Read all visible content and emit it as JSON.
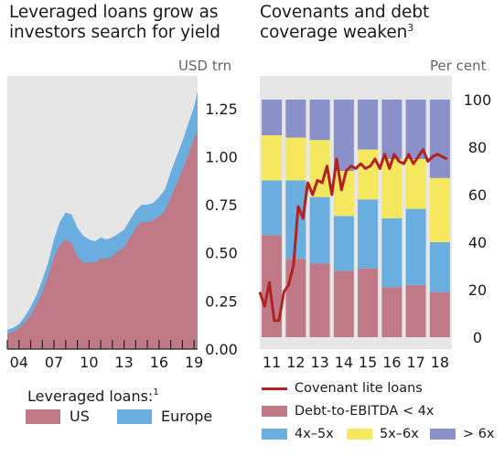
{
  "left_title": [
    "Leveraged loans grow as",
    "investors search for yield"
  ],
  "left_unit": "USD trn",
  "right_title": [
    "Covenants and debt",
    "coverage weaken"
  ],
  "right_title_sup": "3",
  "right_unit": "Per cent",
  "left_legend": {
    "title": "Leveraged loans:",
    "title_sup": "1",
    "items": [
      {
        "label": "US",
        "color": "#c07a87"
      },
      {
        "label": "Europe",
        "color": "#6aaee0"
      }
    ]
  },
  "right_legend": {
    "line": {
      "label": "Covenant lite loans",
      "color": "#b22222"
    },
    "items": [
      {
        "label": "Debt-to-EBITDA < 4x",
        "color": "#c07a87"
      },
      {
        "label": "4x–5x",
        "color": "#6aaee0"
      },
      {
        "label": "5x–6x",
        "color": "#f6e85e"
      },
      {
        "label": "> 6x",
        "color": "#8a90c8"
      }
    ]
  },
  "chart_data": [
    {
      "type": "area",
      "stacked": true,
      "title": "Leveraged loans grow as investors search for yield",
      "unit": "USD trn",
      "x_start": 2003.0,
      "x_end": 2019.3,
      "x_ticks": [
        "04",
        "07",
        "10",
        "13",
        "16",
        "19"
      ],
      "x_tick_values": [
        2004,
        2007,
        2010,
        2013,
        2016,
        2019
      ],
      "y_ticks": [
        "0.00",
        "0.25",
        "0.50",
        "0.75",
        "1.00",
        "1.25"
      ],
      "ylim": [
        0,
        1.42
      ],
      "axis_side": "right",
      "background": "#e6e6e6",
      "x": [
        2003.0,
        2003.5,
        2004.0,
        2004.5,
        2005.0,
        2005.5,
        2006.0,
        2006.5,
        2007.0,
        2007.5,
        2008.0,
        2008.5,
        2009.0,
        2009.5,
        2010.0,
        2010.5,
        2011.0,
        2011.5,
        2012.0,
        2012.5,
        2013.0,
        2013.5,
        2014.0,
        2014.5,
        2015.0,
        2015.5,
        2016.0,
        2016.5,
        2017.0,
        2017.5,
        2018.0,
        2018.5,
        2019.0,
        2019.3
      ],
      "series": [
        {
          "name": "US",
          "color": "#c07a87",
          "values": [
            0.08,
            0.09,
            0.11,
            0.14,
            0.18,
            0.23,
            0.3,
            0.38,
            0.48,
            0.54,
            0.57,
            0.55,
            0.48,
            0.45,
            0.45,
            0.45,
            0.47,
            0.47,
            0.48,
            0.51,
            0.53,
            0.58,
            0.63,
            0.66,
            0.66,
            0.67,
            0.69,
            0.72,
            0.79,
            0.86,
            0.93,
            1.01,
            1.1,
            1.13
          ]
        },
        {
          "name": "Europe",
          "color": "#6aaee0",
          "values": [
            0.02,
            0.02,
            0.02,
            0.03,
            0.04,
            0.05,
            0.06,
            0.07,
            0.09,
            0.12,
            0.14,
            0.15,
            0.15,
            0.14,
            0.12,
            0.11,
            0.11,
            0.1,
            0.1,
            0.09,
            0.09,
            0.09,
            0.09,
            0.09,
            0.09,
            0.09,
            0.1,
            0.11,
            0.13,
            0.14,
            0.15,
            0.16,
            0.16,
            0.21
          ]
        }
      ]
    },
    {
      "type": "bar",
      "stacked": true,
      "title": "Covenants and debt coverage weaken",
      "unit": "Per cent",
      "categories": [
        "11",
        "12",
        "13",
        "14",
        "15",
        "16",
        "17",
        "18"
      ],
      "y_ticks": [
        "0",
        "20",
        "40",
        "60",
        "80",
        "100"
      ],
      "ylim": [
        -5,
        110
      ],
      "axis_side": "right",
      "background": "#e6e6e6",
      "series": [
        {
          "name": "Debt-to-EBITDA < 4x",
          "color": "#c07a87",
          "values": [
            43,
            33,
            31,
            28,
            29,
            21,
            22,
            19
          ]
        },
        {
          "name": "4x–5x",
          "color": "#6aaee0",
          "values": [
            23,
            33,
            28,
            23,
            29,
            29,
            32,
            21
          ]
        },
        {
          "name": "5x–6x",
          "color": "#f6e85e",
          "values": [
            19,
            18,
            24,
            19,
            21,
            25,
            21,
            27
          ]
        },
        {
          "name": "> 6x",
          "color": "#8a90c8",
          "values": [
            15,
            16,
            17,
            30,
            21,
            25,
            25,
            33
          ]
        }
      ],
      "line": {
        "name": "Covenant lite loans",
        "color": "#b22222",
        "x": [
          10.5,
          10.7,
          10.9,
          11.1,
          11.3,
          11.5,
          11.7,
          11.9,
          12.1,
          12.3,
          12.5,
          12.7,
          12.9,
          13.1,
          13.3,
          13.5,
          13.7,
          13.9,
          14.1,
          14.3,
          14.5,
          14.7,
          14.9,
          15.1,
          15.3,
          15.5,
          15.7,
          15.9,
          16.1,
          16.3,
          16.5,
          16.7,
          16.9,
          17.1,
          17.3,
          17.5,
          17.7,
          17.9,
          18.1,
          18.3
        ],
        "values": [
          19,
          13,
          23,
          7,
          7,
          19,
          22,
          30,
          55,
          50,
          65,
          60,
          66,
          65,
          72,
          60,
          75,
          62,
          70,
          72,
          71,
          73,
          71,
          72,
          75,
          71,
          77,
          71,
          77,
          74,
          73,
          77,
          73,
          76,
          79,
          74,
          76,
          77,
          76,
          75
        ]
      }
    }
  ]
}
